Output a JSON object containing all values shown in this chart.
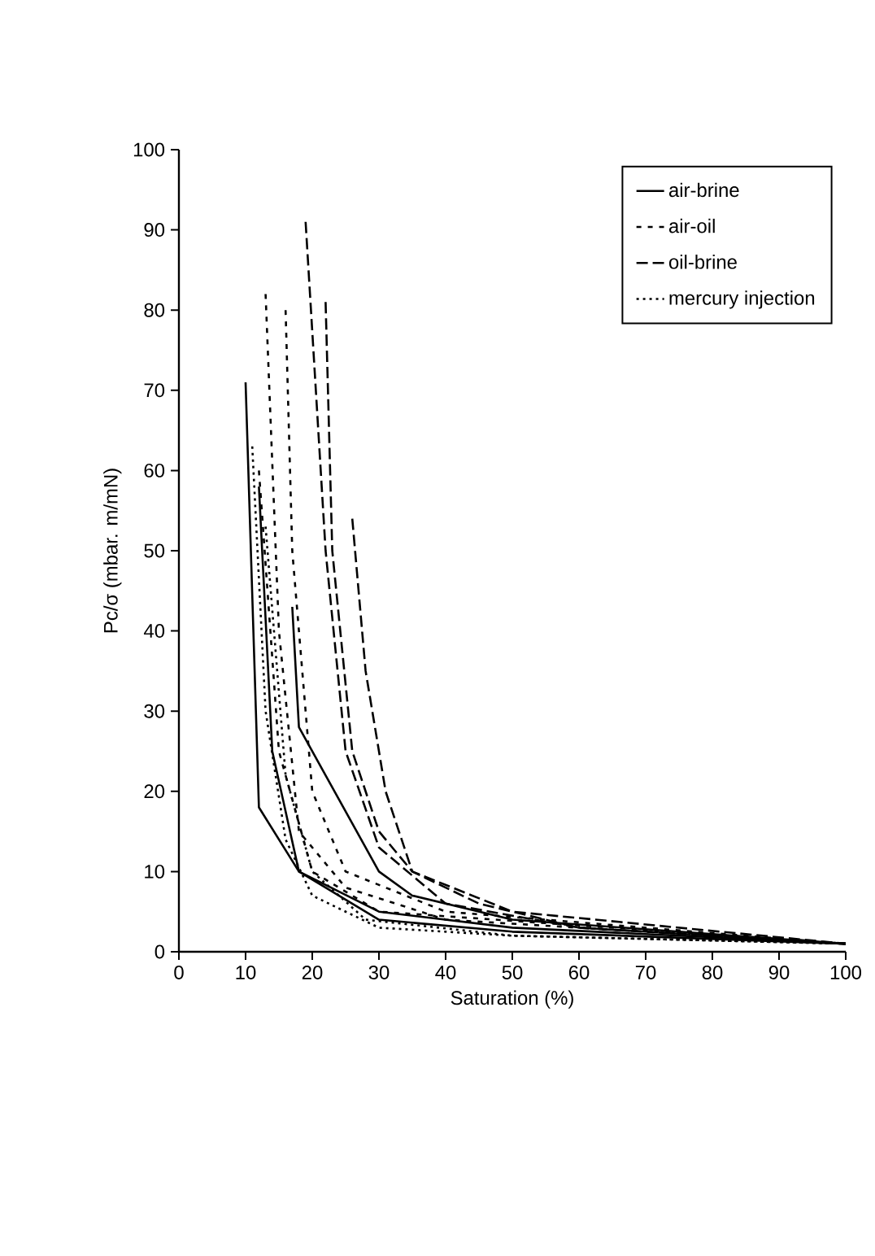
{
  "chart_data": {
    "type": "line",
    "xlabel": "Saturation (%)",
    "ylabel": "Pc/σ (mbar. m/mN)",
    "xlim": [
      0,
      100
    ],
    "ylim": [
      0,
      100
    ],
    "xticks": [
      0,
      10,
      20,
      30,
      40,
      50,
      60,
      70,
      80,
      90,
      100
    ],
    "yticks": [
      0,
      10,
      20,
      30,
      40,
      50,
      60,
      70,
      80,
      90,
      100
    ],
    "grid": false,
    "legend": "top right",
    "marker": "none",
    "series": [
      {
        "name": "air-brine",
        "color": "#000000",
        "line_style": "solid",
        "x": [
          10,
          12,
          18,
          30,
          50,
          100
        ],
        "values": [
          71,
          18,
          10,
          4,
          2.5,
          1
        ]
      },
      {
        "name": "air-oil",
        "color": "#000000",
        "line_style": "dashed",
        "x": [
          13,
          15,
          18,
          25,
          40,
          100
        ],
        "values": [
          82,
          40,
          15,
          8,
          4,
          1
        ]
      },
      {
        "name": "oil-brine",
        "color": "#000000",
        "line_style": "longdashed",
        "x": [
          19,
          22,
          25,
          30,
          40,
          60,
          100
        ],
        "values": [
          91,
          50,
          25,
          13,
          6,
          3,
          1
        ]
      },
      {
        "name": "mercury injection",
        "color": "#000000",
        "line_style": "dotted",
        "x": [
          11,
          13,
          16,
          20,
          30,
          50,
          100
        ],
        "values": [
          63,
          30,
          14,
          7,
          3,
          2,
          1
        ]
      },
      {
        "color": "#000000",
        "line_style": "solid",
        "x": [
          12,
          14,
          18,
          30,
          50,
          100
        ],
        "values": [
          58,
          25,
          10,
          5,
          3,
          1
        ]
      },
      {
        "color": "#000000",
        "line_style": "solid",
        "x": [
          17,
          18,
          22,
          30,
          35,
          50,
          100
        ],
        "values": [
          43,
          28,
          22,
          10,
          7,
          4,
          1
        ]
      },
      {
        "color": "#000000",
        "line_style": "dashed",
        "x": [
          16,
          17,
          20,
          25,
          40,
          100
        ],
        "values": [
          80,
          50,
          20,
          10,
          5,
          1
        ]
      },
      {
        "color": "#000000",
        "line_style": "dashed",
        "x": [
          12,
          15,
          20,
          30,
          100
        ],
        "values": [
          60,
          25,
          10,
          5,
          1
        ]
      },
      {
        "color": "#000000",
        "line_style": "longdashed",
        "x": [
          22,
          23,
          26,
          30,
          35,
          50,
          100
        ],
        "values": [
          81,
          50,
          25,
          15,
          10,
          5,
          1
        ]
      },
      {
        "color": "#000000",
        "line_style": "longdashed",
        "x": [
          26,
          28,
          31,
          35,
          45,
          60,
          100
        ],
        "values": [
          54,
          35,
          20,
          10,
          6,
          3,
          1
        ]
      },
      {
        "color": "#000000",
        "line_style": "dotted",
        "x": [
          13,
          16,
          20,
          28,
          50,
          100
        ],
        "values": [
          53,
          22,
          10,
          4,
          2,
          1
        ]
      }
    ]
  }
}
